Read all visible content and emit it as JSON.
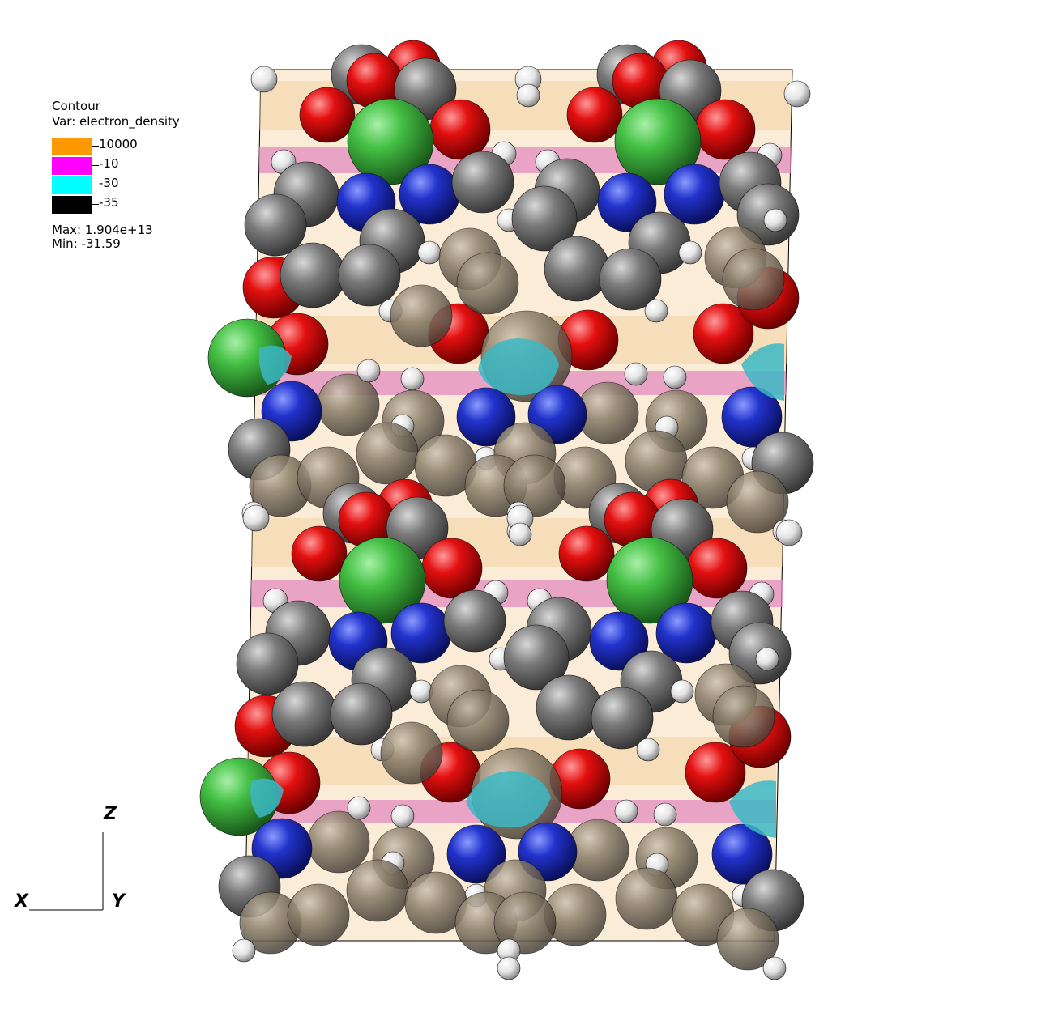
{
  "legend": {
    "title": "Contour",
    "variable": "Var: electron_density",
    "entries": [
      {
        "label": "10000",
        "color": "#ff9900"
      },
      {
        "label": "-10",
        "color": "#ff00ff"
      },
      {
        "label": "-30",
        "color": "#00ffff"
      },
      {
        "label": "-35",
        "color": "#000000"
      }
    ],
    "max": "Max:  1.904e+13",
    "min": "Min: -31.59"
  },
  "axes": {
    "x": "X",
    "y": "Y",
    "z": "Z"
  },
  "colors": {
    "carbon": "#777777",
    "oxygen": "#e01010",
    "nitrogen": "#2233cc",
    "hydrogen": "#eeeeee",
    "chlorine": "#3fbf3f",
    "contour_orange": "#f2cf9a",
    "contour_magenta": "#e48bc0",
    "contour_cyan": "#3bb8c4"
  }
}
